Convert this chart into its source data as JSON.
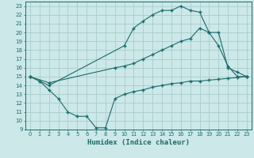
{
  "xlabel": "Humidex (Indice chaleur)",
  "bg_color": "#cce8e8",
  "grid_color": "#aacccc",
  "line_color": "#1a6b6b",
  "xlim": [
    -0.5,
    23.5
  ],
  "ylim": [
    9,
    23.5
  ],
  "xticks": [
    0,
    1,
    2,
    3,
    4,
    5,
    6,
    7,
    8,
    9,
    10,
    11,
    12,
    13,
    14,
    15,
    16,
    17,
    18,
    19,
    20,
    21,
    22,
    23
  ],
  "yticks": [
    9,
    10,
    11,
    12,
    13,
    14,
    15,
    16,
    17,
    18,
    19,
    20,
    21,
    22,
    23
  ],
  "line1_x": [
    0,
    1,
    2,
    10,
    11,
    12,
    13,
    14,
    15,
    16,
    17,
    18,
    19,
    20,
    21,
    22,
    23
  ],
  "line1_y": [
    15,
    14.5,
    14,
    18.5,
    20.5,
    21.3,
    22.0,
    22.5,
    22.5,
    23.0,
    22.5,
    22.3,
    20.0,
    18.5,
    16.2,
    15.0,
    15.0
  ],
  "line2_x": [
    0,
    2,
    9,
    10,
    11,
    12,
    13,
    14,
    15,
    16,
    17,
    18,
    19,
    20,
    21,
    22,
    23
  ],
  "line2_y": [
    15,
    14.3,
    16.0,
    16.2,
    16.5,
    17.0,
    17.5,
    18.0,
    18.5,
    19.0,
    19.3,
    20.5,
    20.0,
    20.0,
    16.0,
    15.5,
    15.0
  ],
  "line3_x": [
    0,
    1,
    2,
    3,
    4,
    5,
    6,
    7,
    8,
    9,
    10,
    11,
    12,
    13,
    14,
    15,
    16,
    17,
    18,
    19,
    20,
    21,
    22,
    23
  ],
  "line3_y": [
    15,
    14.5,
    13.5,
    12.5,
    11.0,
    10.5,
    10.5,
    9.2,
    9.2,
    12.5,
    13.0,
    13.3,
    13.5,
    13.8,
    14.0,
    14.2,
    14.3,
    14.5,
    14.5,
    14.6,
    14.7,
    14.8,
    14.9,
    15.0
  ]
}
